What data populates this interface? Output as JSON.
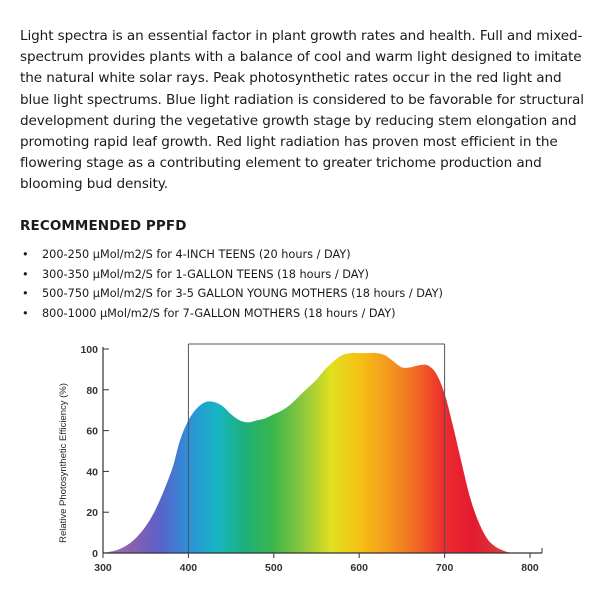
{
  "intro": {
    "paragraph": "Light spectra is an essential factor in plant growth rates and health. Full and mixed-spectrum provides plants with a balance of cool and warm light designed to imitate the natural white solar rays. Peak photosynthetic rates occur in the red light and blue light spectrums. Blue light radiation is considered to be favorable for structural development during the vegetative growth stage by reducing stem elongation and promoting rapid leaf growth. Red light radiation has proven most efficient in the flowering stage as a contributing element to greater trichome production and blooming bud density."
  },
  "recommended": {
    "heading": "RECOMMENDED PPFD",
    "items": [
      "200-250 μMol/m2/S for  4-INCH TEENS (20 hours / DAY)",
      "300-350 μMol/m2/S for 1-GALLON TEENS (18 hours / DAY)",
      "500-750 μMol/m2/S for 3-5 GALLON YOUNG MOTHERS (18 hours / DAY)",
      "800-1000 μMol/m2/S for 7-GALLON MOTHERS (18 hours / DAY)"
    ]
  },
  "chart_data": {
    "type": "area",
    "title": "",
    "xlabel": "",
    "ylabel": "Relative Photosynthetic Efficiency (%)",
    "xlim": [
      300,
      800
    ],
    "ylim": [
      0,
      100
    ],
    "xticks": [
      300,
      400,
      500,
      600,
      700,
      800
    ],
    "yticks": [
      0,
      20,
      40,
      60,
      80,
      100
    ],
    "grid": false,
    "highlight_range": [
      400,
      700
    ],
    "x": [
      300,
      320,
      340,
      360,
      380,
      390,
      400,
      410,
      420,
      430,
      440,
      450,
      460,
      470,
      480,
      490,
      500,
      510,
      520,
      530,
      540,
      550,
      560,
      570,
      580,
      590,
      600,
      610,
      620,
      630,
      640,
      650,
      660,
      670,
      680,
      690,
      700,
      710,
      720,
      730,
      740,
      750,
      760,
      770,
      780,
      790
    ],
    "y": [
      0,
      2,
      8,
      20,
      40,
      55,
      65,
      71,
      74,
      74,
      72,
      68,
      65,
      64,
      65,
      66,
      68,
      70,
      73,
      77,
      81,
      85,
      90,
      94,
      97,
      98,
      98,
      98,
      98,
      97,
      94,
      91,
      91,
      92,
      92,
      88,
      78,
      62,
      44,
      27,
      15,
      7,
      3,
      1,
      0,
      0
    ],
    "spectrum_colors": [
      "#a178b5",
      "#8a5fb0",
      "#5a62c8",
      "#2e8fd8",
      "#16b5c4",
      "#1fb07a",
      "#3cb64a",
      "#8cc63f",
      "#e0e020",
      "#f5c214",
      "#f39a1e",
      "#f26a24",
      "#ec2a2e",
      "#e21b2f",
      "#d83b3a",
      "#d9806e"
    ]
  }
}
